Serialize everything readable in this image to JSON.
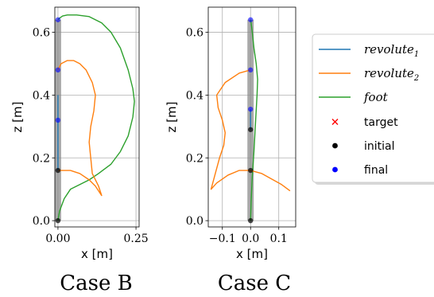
{
  "colors": {
    "revolute1": "#1f77b4",
    "revolute2": "#ff7f0e",
    "foot": "#2ca02c",
    "target": "#ff0000",
    "initial": "#000000",
    "final": "#0000ff",
    "leg_links": "#8c8c8c"
  },
  "legend": {
    "placement": "right",
    "entries": [
      {
        "key": "revolute1",
        "label": "revolute",
        "sub": "1",
        "marker": "line",
        "style": "math"
      },
      {
        "key": "revolute2",
        "label": "revolute",
        "sub": "2",
        "marker": "line",
        "style": "math"
      },
      {
        "key": "foot",
        "label": "foot",
        "sub": "",
        "marker": "line",
        "style": "math"
      },
      {
        "key": "target",
        "label": "target",
        "sub": "",
        "marker": "x",
        "style": "plain"
      },
      {
        "key": "initial",
        "label": "initial",
        "sub": "",
        "marker": "dot",
        "style": "plain"
      },
      {
        "key": "final",
        "label": "final",
        "sub": "",
        "marker": "dot",
        "style": "plain"
      }
    ]
  },
  "chart_data": [
    {
      "type": "line",
      "caption": "Case B",
      "xlabel": "x [m]",
      "ylabel": "z [m]",
      "xlim": [
        -0.01,
        0.26
      ],
      "ylim": [
        -0.02,
        0.68
      ],
      "xticks": [
        0.0,
        0.25
      ],
      "xtick_labels": [
        "0.00",
        "0.25"
      ],
      "yticks": [
        0.0,
        0.2,
        0.4,
        0.6
      ],
      "ytick_labels": [
        "0.0",
        "0.2",
        "0.4",
        "0.6"
      ],
      "grid": true,
      "series": [
        {
          "key": "foot",
          "x": [
            0.0,
            0.005,
            0.015,
            0.03,
            0.06,
            0.1,
            0.14,
            0.17,
            0.2,
            0.225,
            0.24,
            0.245,
            0.24,
            0.225,
            0.2,
            0.17,
            0.13,
            0.1,
            0.07,
            0.04,
            0.02,
            0.005,
            0.0
          ],
          "z": [
            0.64,
            0.645,
            0.652,
            0.655,
            0.655,
            0.65,
            0.63,
            0.6,
            0.55,
            0.48,
            0.42,
            0.38,
            0.33,
            0.27,
            0.22,
            0.18,
            0.15,
            0.13,
            0.115,
            0.1,
            0.07,
            0.03,
            0.0
          ]
        },
        {
          "key": "revolute2",
          "x": [
            0.0,
            0.01,
            0.03,
            0.05,
            0.07,
            0.09,
            0.11,
            0.12,
            0.115,
            0.105,
            0.1,
            0.105,
            0.11,
            0.13,
            0.14,
            0.12,
            0.1,
            0.07,
            0.04,
            0.015,
            0.0
          ],
          "z": [
            0.48,
            0.5,
            0.51,
            0.51,
            0.5,
            0.48,
            0.44,
            0.4,
            0.35,
            0.3,
            0.25,
            0.2,
            0.15,
            0.11,
            0.08,
            0.11,
            0.13,
            0.15,
            0.16,
            0.16,
            0.16
          ]
        },
        {
          "key": "revolute1",
          "x": [
            0.0,
            0.0,
            0.0
          ],
          "z": [
            0.16,
            0.3,
            0.4
          ]
        }
      ],
      "links": {
        "x": [
          0.0,
          0.0,
          0.0,
          0.0,
          0.0
        ],
        "z": [
          0.0,
          0.16,
          0.32,
          0.48,
          0.64
        ]
      },
      "initial_points": {
        "x": [
          0.0,
          0.0
        ],
        "z": [
          0.0,
          0.16
        ]
      },
      "final_points": {
        "x": [
          0.0,
          0.0,
          0.0
        ],
        "z": [
          0.32,
          0.48,
          0.64
        ]
      }
    },
    {
      "type": "line",
      "caption": "Case C",
      "xlabel": "x [m]",
      "ylabel": "z [m]",
      "xlim": [
        -0.15,
        0.16
      ],
      "ylim": [
        -0.02,
        0.68
      ],
      "xticks": [
        -0.1,
        0.0,
        0.1
      ],
      "xtick_labels": [
        "−0.1",
        "0.0",
        "0.1"
      ],
      "yticks": [
        0.0,
        0.2,
        0.4,
        0.6
      ],
      "ytick_labels": [
        "0.0",
        "0.2",
        "0.4",
        "0.6"
      ],
      "grid": true,
      "series": [
        {
          "key": "foot",
          "x": [
            0.0,
            0.002,
            0.006,
            0.012,
            0.02,
            0.025,
            0.023,
            0.018,
            0.012,
            0.006,
            0.002,
            0.0
          ],
          "z": [
            0.64,
            0.63,
            0.6,
            0.55,
            0.5,
            0.45,
            0.4,
            0.32,
            0.22,
            0.14,
            0.06,
            0.0
          ]
        },
        {
          "key": "revolute2",
          "x": [
            0.0,
            -0.04,
            -0.09,
            -0.12,
            -0.115,
            -0.1,
            -0.09,
            -0.095,
            -0.11,
            -0.125,
            -0.14,
            -0.12,
            -0.08,
            -0.04,
            0.0,
            0.04,
            0.08,
            0.11,
            0.14
          ],
          "z": [
            0.48,
            0.47,
            0.44,
            0.4,
            0.36,
            0.32,
            0.28,
            0.24,
            0.2,
            0.15,
            0.1,
            0.12,
            0.145,
            0.16,
            0.16,
            0.15,
            0.13,
            0.115,
            0.095
          ]
        },
        {
          "key": "revolute1",
          "x": [
            0.0,
            0.0,
            0.0
          ],
          "z": [
            0.29,
            0.32,
            0.355
          ]
        }
      ],
      "links": {
        "x": [
          0.0,
          0.0,
          0.0,
          0.0,
          0.0
        ],
        "z": [
          0.0,
          0.16,
          0.32,
          0.48,
          0.64
        ]
      },
      "initial_points": {
        "x": [
          0.0,
          0.0,
          0.0
        ],
        "z": [
          0.0,
          0.16,
          0.29
        ]
      },
      "final_points": {
        "x": [
          0.0,
          0.0,
          0.0
        ],
        "z": [
          0.355,
          0.48,
          0.64
        ]
      }
    }
  ]
}
